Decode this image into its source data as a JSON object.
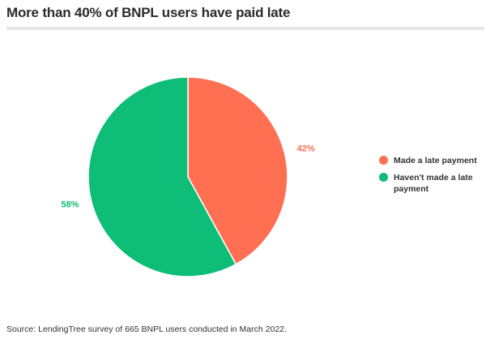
{
  "title": "More than 40% of BNPL users have paid late",
  "source": "Source: LendingTree survey of 665 BNPL users conducted in March 2022.",
  "colors": {
    "late": "#ff7052",
    "not_late": "#0dbd78"
  },
  "chart_data": {
    "type": "pie",
    "title": "More than 40% of BNPL users have paid late",
    "legend_position": "right",
    "slices": [
      {
        "label": "Made a late payment",
        "value": 42,
        "display": "42%",
        "color": "#ff7052"
      },
      {
        "label": "Haven't made a late payment",
        "value": 58,
        "display": "58%",
        "color": "#0dbd78"
      }
    ]
  }
}
